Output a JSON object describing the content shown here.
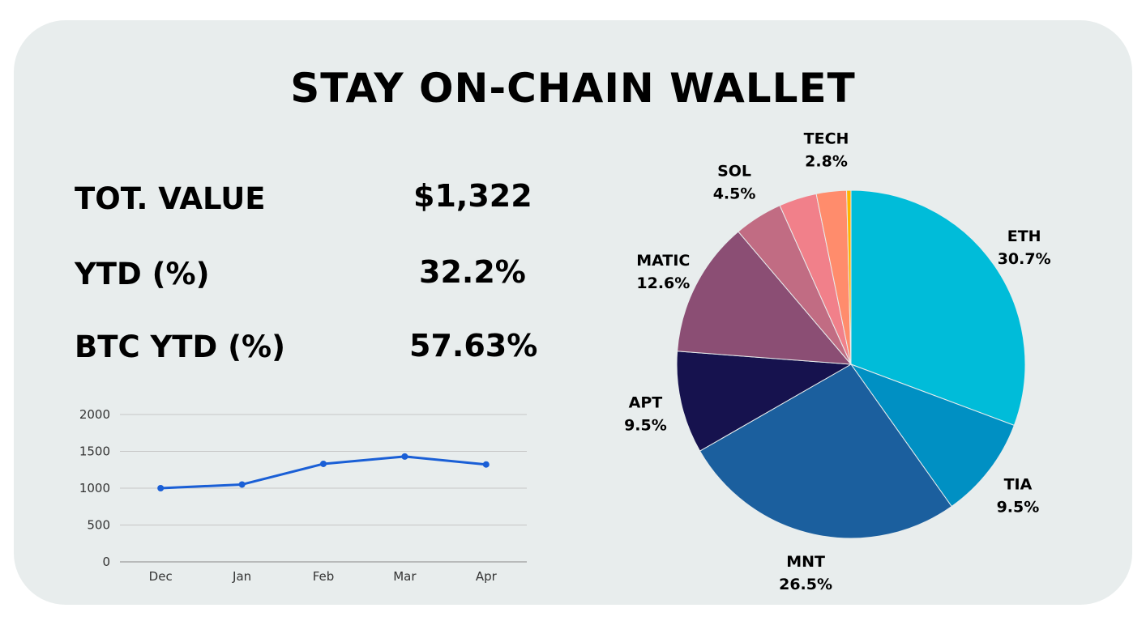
{
  "title": "STAY ON-CHAIN WALLET",
  "stats": [
    {
      "label": "TOT. VALUE",
      "value": "$1,322"
    },
    {
      "label": "YTD (%)",
      "value": "32.2%"
    },
    {
      "label": "BTC YTD (%)",
      "value": "57.63%"
    }
  ],
  "chart_data": [
    {
      "type": "line",
      "categories": [
        "Dec",
        "Jan",
        "Feb",
        "Mar",
        "Apr"
      ],
      "series": [
        {
          "values": [
            1000,
            1050,
            1330,
            1430,
            1322
          ],
          "color": "#1a5fd6"
        }
      ],
      "yticks": [
        "0",
        "500",
        "1000",
        "1500",
        "2000"
      ],
      "ylim": [
        0,
        2000
      ],
      "grid": true
    },
    {
      "type": "pie",
      "slices": [
        {
          "label": "ETH",
          "pct": "30.7%",
          "value": 30.7,
          "color": "#00bcd9"
        },
        {
          "label": "TIA",
          "pct": "9.5%",
          "value": 9.5,
          "color": "#0090c3"
        },
        {
          "label": "MNT",
          "pct": "26.5%",
          "value": 26.5,
          "color": "#1b5f9e"
        },
        {
          "label": "APT",
          "pct": "9.5%",
          "value": 9.5,
          "color": "#16124e"
        },
        {
          "label": "MATIC",
          "pct": "12.6%",
          "value": 12.6,
          "color": "#8b4e74"
        },
        {
          "label": "SOL",
          "pct": "4.5%",
          "value": 4.5,
          "color": "#c16c83"
        },
        {
          "label": "",
          "pct": "",
          "value": 3.5,
          "color": "#f1808a"
        },
        {
          "label": "TECH",
          "pct": "2.8%",
          "value": 2.8,
          "color": "#ff8c6c"
        },
        {
          "label": "",
          "pct": "",
          "value": 0.4,
          "color": "#ffb400"
        }
      ]
    }
  ]
}
